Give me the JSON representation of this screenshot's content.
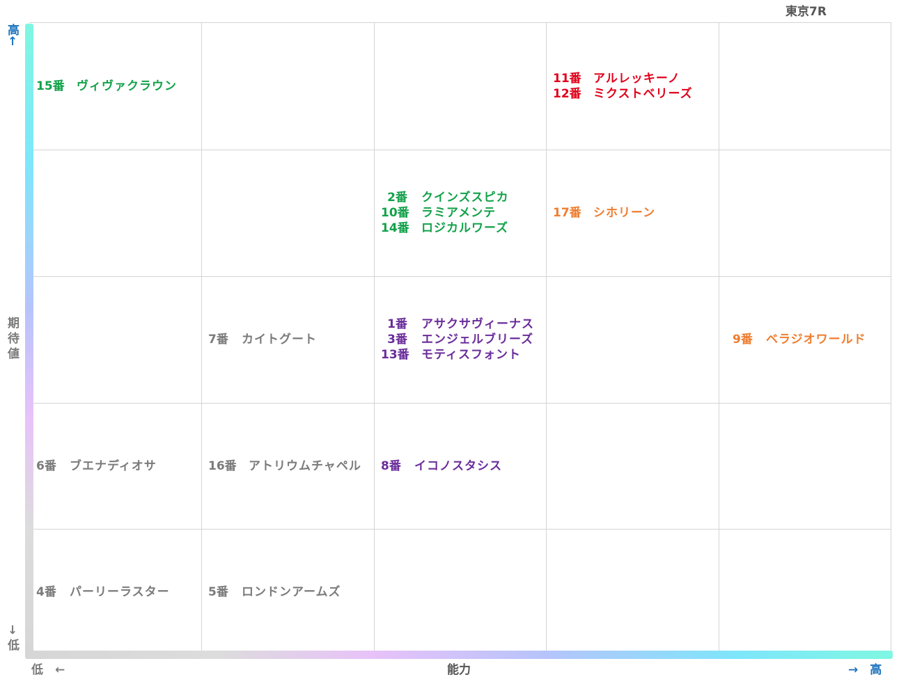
{
  "title": "東京7R",
  "axes": {
    "y_title_chars": [
      "期",
      "待",
      "値"
    ],
    "y_high_chars": [
      "高",
      "↑"
    ],
    "y_low_chars": [
      "↓",
      "低"
    ],
    "x_title": "能力",
    "x_low": "低　←",
    "x_high": "→　高"
  },
  "colors": {
    "green": "#12a149",
    "red": "#e0001b",
    "orange": "#ee7d2f",
    "purple": "#6a2c9a",
    "gray": "#7a7a7a",
    "axis_blue": "#1e73be"
  },
  "cells": [
    {
      "col": 0,
      "row": 0,
      "entries": [
        {
          "num": "15番",
          "name": "ヴィヴァクラウン",
          "color": "green"
        }
      ]
    },
    {
      "col": 3,
      "row": 0,
      "entries": [
        {
          "num": "11番",
          "name": "アルレッキーノ",
          "color": "red"
        },
        {
          "num": "12番",
          "name": "ミクストベリーズ",
          "color": "red"
        }
      ]
    },
    {
      "col": 2,
      "row": 1,
      "entries": [
        {
          "num": "2番",
          "name": "クインズスピカ",
          "color": "green"
        },
        {
          "num": "10番",
          "name": "ラミアメンテ",
          "color": "green"
        },
        {
          "num": "14番",
          "name": "ロジカルワーズ",
          "color": "green"
        }
      ]
    },
    {
      "col": 3,
      "row": 1,
      "entries": [
        {
          "num": "17番",
          "name": "シホリーン",
          "color": "orange"
        }
      ]
    },
    {
      "col": 1,
      "row": 2,
      "entries": [
        {
          "num": "7番",
          "name": "カイトグート",
          "color": "gray"
        }
      ]
    },
    {
      "col": 2,
      "row": 2,
      "entries": [
        {
          "num": "1番",
          "name": "アサクサヴィーナス",
          "color": "purple"
        },
        {
          "num": "3番",
          "name": "エンジェルブリーズ",
          "color": "purple"
        },
        {
          "num": "13番",
          "name": "モティスフォント",
          "color": "purple"
        }
      ]
    },
    {
      "col": 4,
      "row": 2,
      "entries": [
        {
          "num": "9番",
          "name": "ベラジオワールド",
          "color": "orange"
        }
      ]
    },
    {
      "col": 0,
      "row": 3,
      "entries": [
        {
          "num": "6番",
          "name": "ブエナディオサ",
          "color": "gray"
        }
      ]
    },
    {
      "col": 1,
      "row": 3,
      "entries": [
        {
          "num": "16番",
          "name": "アトリウムチャペル",
          "color": "gray"
        }
      ]
    },
    {
      "col": 2,
      "row": 3,
      "entries": [
        {
          "num": "8番",
          "name": "イコノスタシス",
          "color": "purple"
        }
      ]
    },
    {
      "col": 0,
      "row": 4,
      "entries": [
        {
          "num": "4番",
          "name": "パーリーラスター",
          "color": "gray"
        }
      ]
    },
    {
      "col": 1,
      "row": 4,
      "entries": [
        {
          "num": "5番",
          "name": "ロンドンアームズ",
          "color": "gray"
        }
      ]
    }
  ]
}
